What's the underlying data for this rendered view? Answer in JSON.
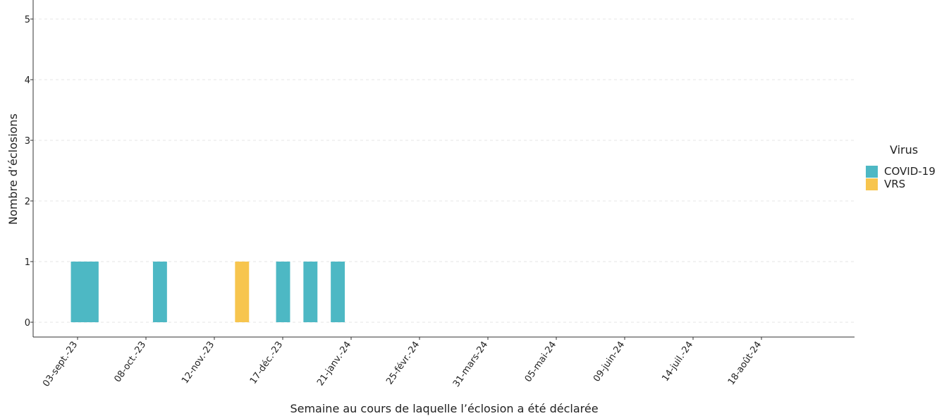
{
  "chart_data": {
    "type": "bar",
    "xlabel": "Semaine au cours de laquelle l’éclosion a été déclarée",
    "ylabel": "Nombre d’éclosions",
    "ylim": [
      0,
      5
    ],
    "yticks": [
      0,
      1,
      2,
      3,
      4,
      5
    ],
    "x_tick_labels": [
      "03-sept.-23",
      "08-oct.-23",
      "12-nov.-23",
      "17-déc.-23",
      "21-janv.-24",
      "25-févr.-24",
      "31-mars-24",
      "05-mai-24",
      "09-juin-24",
      "14-juil.-24",
      "18-août-24"
    ],
    "x_range": [
      "2023-08-20",
      "2024-09-15"
    ],
    "grid": "horizontal dashed",
    "legend": {
      "title": "Virus",
      "position": "right"
    },
    "series": [
      {
        "name": "COVID-19",
        "color": "#4DB8C4",
        "points": [
          {
            "week": "2023-09-03",
            "value": 1
          },
          {
            "week": "2023-09-10",
            "value": 1
          },
          {
            "week": "2023-10-15",
            "value": 1
          },
          {
            "week": "2023-12-17",
            "value": 1
          },
          {
            "week": "2023-12-31",
            "value": 1
          },
          {
            "week": "2024-01-14",
            "value": 1
          }
        ]
      },
      {
        "name": "VRS",
        "color": "#F7C54E",
        "points": [
          {
            "week": "2023-11-26",
            "value": 1
          }
        ]
      }
    ]
  }
}
